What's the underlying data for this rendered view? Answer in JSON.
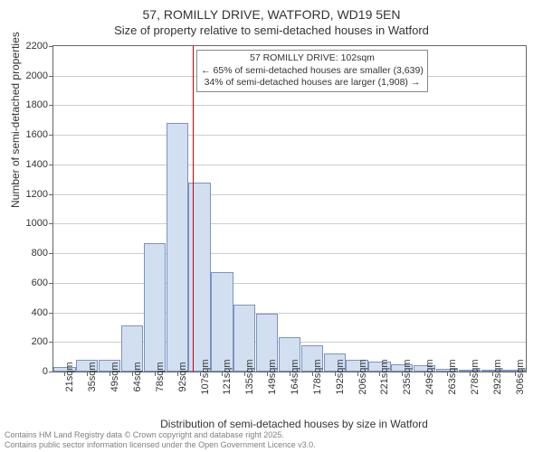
{
  "title_main": "57, ROMILLY DRIVE, WATFORD, WD19 5EN",
  "title_sub": "Size of property relative to semi-detached houses in Watford",
  "y_axis_label": "Number of semi-detached properties",
  "x_axis_label": "Distribution of semi-detached houses by size in Watford",
  "chart": {
    "type": "histogram",
    "y_max": 2200,
    "y_tick_step": 200,
    "y_ticks": [
      0,
      200,
      400,
      600,
      800,
      1000,
      1200,
      1400,
      1600,
      1800,
      2000,
      2200
    ],
    "x_labels": [
      "21sqm",
      "35sqm",
      "49sqm",
      "64sqm",
      "78sqm",
      "92sqm",
      "107sqm",
      "121sqm",
      "135sqm",
      "149sqm",
      "164sqm",
      "178sqm",
      "192sqm",
      "206sqm",
      "221sqm",
      "235sqm",
      "249sqm",
      "263sqm",
      "278sqm",
      "292sqm",
      "306sqm"
    ],
    "bar_values": [
      30,
      80,
      80,
      310,
      870,
      1680,
      1280,
      670,
      450,
      390,
      230,
      180,
      120,
      80,
      70,
      50,
      40,
      20,
      15,
      10,
      8
    ],
    "bar_fill": "#d2dff0",
    "bar_border": "#7a94c0",
    "grid_color": "#cccccc",
    "background": "#ffffff",
    "reference_line": {
      "position_index": 5.7,
      "color": "#cc0000"
    },
    "annotation": {
      "line1": "57 ROMILLY DRIVE: 102sqm",
      "line2": "← 65% of semi-detached houses are smaller (3,639)",
      "line3": "34% of semi-detached houses are larger (1,908) →"
    }
  },
  "footer_line1": "Contains HM Land Registry data © Crown copyright and database right 2025.",
  "footer_line2": "Contains public sector information licensed under the Open Government Licence v3.0."
}
